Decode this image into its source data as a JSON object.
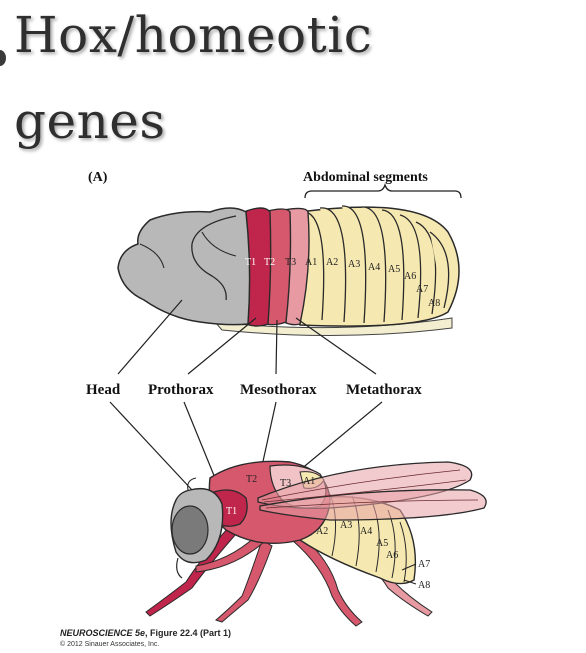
{
  "slide": {
    "title_line_1": "Hox/homeotic",
    "title_line_2": "genes"
  },
  "figure": {
    "panel_label": "(A)",
    "abdominal_segments_label": "Abdominal segments",
    "region_labels": {
      "head": "Head",
      "prothorax": "Prothorax",
      "mesothorax": "Mesothorax",
      "metathorax": "Metathorax"
    },
    "larva_segments": [
      "T1",
      "T2",
      "T3",
      "A1",
      "A2",
      "A3",
      "A4",
      "A5",
      "A6",
      "A7",
      "A8"
    ],
    "fly_segments": {
      "T1": "T1",
      "T2": "T2",
      "T3": "T3",
      "A1": "A1",
      "A2": "A2",
      "A3": "A3",
      "A4": "A4",
      "A5": "A5",
      "A6": "A6",
      "A7": "A7",
      "A8": "A8"
    },
    "colors": {
      "head": "#b8b8b8",
      "t1": "#c0264c",
      "t2": "#d6586d",
      "t3": "#e79aa2",
      "abdomen": "#f6e8b1",
      "outline": "#2a2a2a"
    }
  },
  "credit": {
    "book": "NEUROSCIENCE 5e",
    "figure_ref": ", Figure 22.4 (Part 1)",
    "copyright": "© 2012 Sinauer Associates, Inc."
  }
}
